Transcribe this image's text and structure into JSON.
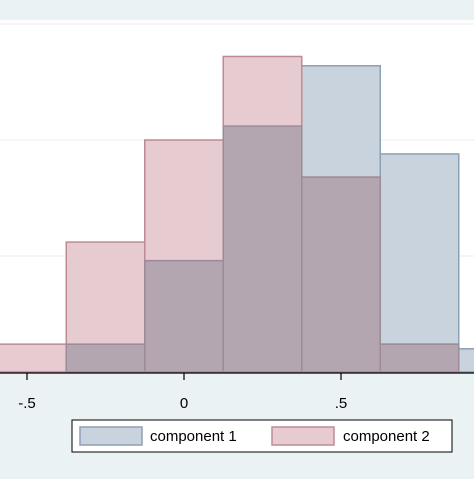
{
  "chart_data": {
    "type": "bar",
    "title": "",
    "xlabel": "",
    "ylabel": "",
    "xlim": [
      -0.55,
      0.92
    ],
    "ylim": [
      0,
      0.33
    ],
    "x_ticks": [
      {
        "value": -0.5,
        "label": "-.5"
      },
      {
        "value": 0,
        "label": "0"
      },
      {
        "value": 0.5,
        "label": ".5"
      }
    ],
    "y_gridlines": [
      0.1,
      0.2,
      0.3
    ],
    "bin_width": 0.25,
    "legend_position": "bottom",
    "series": [
      {
        "name": "component 1",
        "color": "#c9d3de",
        "stroke": "#8ca0b6",
        "bins": [
          {
            "x0": -0.375,
            "x1": -0.125,
            "value": 0.024
          },
          {
            "x0": -0.125,
            "x1": 0.125,
            "value": 0.096
          },
          {
            "x0": 0.125,
            "x1": 0.375,
            "value": 0.212
          },
          {
            "x0": 0.375,
            "x1": 0.625,
            "value": 0.264
          },
          {
            "x0": 0.625,
            "x1": 0.875,
            "value": 0.188
          },
          {
            "x0": 0.875,
            "x1": 1.125,
            "value": 0.02
          }
        ]
      },
      {
        "name": "component 2",
        "color": "#e6cbd0",
        "stroke": "#be8b94",
        "bins": [
          {
            "x0": -0.625,
            "x1": -0.375,
            "value": 0.024
          },
          {
            "x0": -0.375,
            "x1": -0.125,
            "value": 0.112
          },
          {
            "x0": -0.125,
            "x1": 0.125,
            "value": 0.2
          },
          {
            "x0": 0.125,
            "x1": 0.375,
            "value": 0.272
          },
          {
            "x0": 0.375,
            "x1": 0.625,
            "value": 0.168
          },
          {
            "x0": 0.625,
            "x1": 0.875,
            "value": 0.024
          }
        ]
      }
    ],
    "overlap_color": "#b3a6b1",
    "overlap_stroke": "#9c8a98"
  }
}
